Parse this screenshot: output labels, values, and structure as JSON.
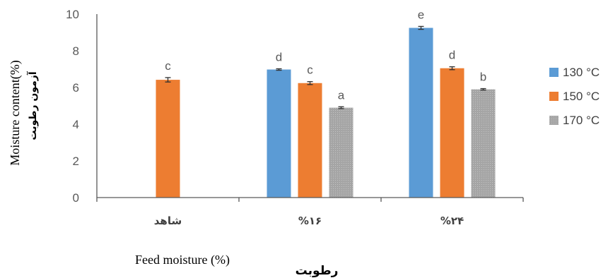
{
  "chart_data": {
    "type": "bar",
    "categories": [
      "شاهد",
      "%۱۶",
      "%۲۴"
    ],
    "xlabel_en": "Feed moisture (%)",
    "xlabel_fa": "رطوبت",
    "ylabel_en": "Moisture content(%)",
    "ylabel_fa": "آزمون رطوبت",
    "ylim": [
      0,
      10
    ],
    "yticks": [
      "0",
      "2",
      "4",
      "6",
      "8",
      "10"
    ],
    "legend_position": "right",
    "series": [
      {
        "name": "130 °C",
        "color": "#5b9bd5",
        "values": [
          null,
          6.98,
          9.25
        ],
        "errors": [
          null,
          0.04,
          0.08
        ],
        "letters": [
          null,
          "d",
          "e"
        ]
      },
      {
        "name": "150 °C",
        "color": "#ed7d31",
        "values": [
          6.42,
          6.24,
          7.05
        ],
        "errors": [
          0.12,
          0.08,
          0.08
        ],
        "letters": [
          "c",
          "c",
          "d"
        ]
      },
      {
        "name": "170 °C",
        "color": "#a5a5a5",
        "values": [
          null,
          4.9,
          5.9
        ],
        "errors": [
          null,
          0.05,
          0.04
        ],
        "letters": [
          null,
          "a",
          "b"
        ]
      }
    ]
  }
}
